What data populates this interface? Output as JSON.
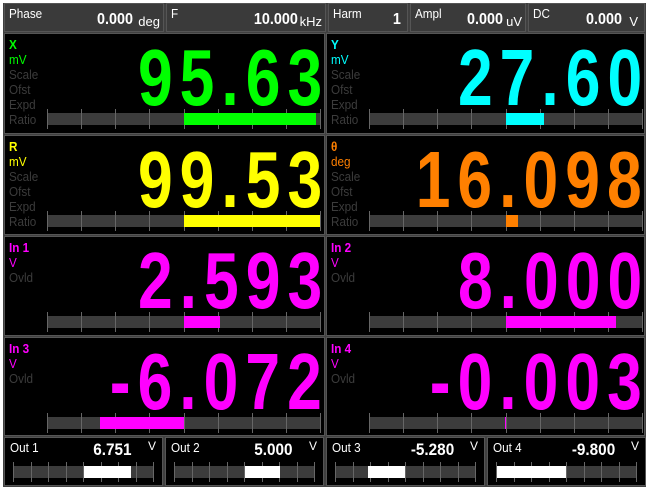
{
  "header": [
    {
      "label": "Phase",
      "value": "0.000",
      "unit": "deg"
    },
    {
      "label": "F",
      "value": "10.000",
      "unit": "kHz"
    },
    {
      "label": "Harm",
      "value": "1",
      "unit": ""
    },
    {
      "label": "Ampl",
      "value": "0.000",
      "unit": "uV"
    },
    {
      "label": "DC",
      "value": "0.000",
      "unit": "V"
    }
  ],
  "panels": [
    {
      "name": "X",
      "unit": "mV",
      "value": "95.63",
      "color": "#00ff00",
      "extra": [
        "Scale",
        "Ofst",
        "Expd",
        "Ratio"
      ],
      "bar_fraction": 0.96
    },
    {
      "name": "Y",
      "unit": "mV",
      "value": "27.60",
      "color": "#00ffff",
      "extra": [
        "Scale",
        "Ofst",
        "Expd",
        "Ratio"
      ],
      "bar_fraction": 0.28
    },
    {
      "name": "R",
      "unit": "mV",
      "value": "99.53",
      "color": "#ffff00",
      "extra": [
        "Scale",
        "Ofst",
        "Expd",
        "Ratio"
      ],
      "bar_fraction": 0.995
    },
    {
      "name": "θ",
      "unit": "deg",
      "value": "16.098",
      "color": "#ff8000",
      "extra": [
        "Scale",
        "Ofst",
        "Expd",
        "Ratio"
      ],
      "bar_fraction": 0.09
    },
    {
      "name": "In 1",
      "unit": "V",
      "value": "2.593",
      "color": "#ff00ff",
      "extra": [
        "Ovld"
      ],
      "bar_fraction": 0.26
    },
    {
      "name": "In 2",
      "unit": "V",
      "value": "8.000",
      "color": "#ff00ff",
      "extra": [
        "Ovld"
      ],
      "bar_fraction": 0.8
    },
    {
      "name": "In 3",
      "unit": "V",
      "value": "-6.072",
      "color": "#ff00ff",
      "extra": [
        "Ovld"
      ],
      "bar_fraction": -0.61
    },
    {
      "name": "In 4",
      "unit": "V",
      "value": "-0.003",
      "color": "#ff00ff",
      "extra": [
        "Ovld"
      ],
      "bar_fraction": -0.003
    }
  ],
  "outputs": [
    {
      "label": "Out 1",
      "value": "6.751",
      "unit": "V",
      "bar_fraction": 0.675
    },
    {
      "label": "Out 2",
      "value": "5.000",
      "unit": "V",
      "bar_fraction": 0.5
    },
    {
      "label": "Out 3",
      "value": "-5.280",
      "unit": "V",
      "bar_fraction": -0.528
    },
    {
      "label": "Out 4",
      "value": "-9.800",
      "unit": "V",
      "bar_fraction": -0.98
    }
  ]
}
